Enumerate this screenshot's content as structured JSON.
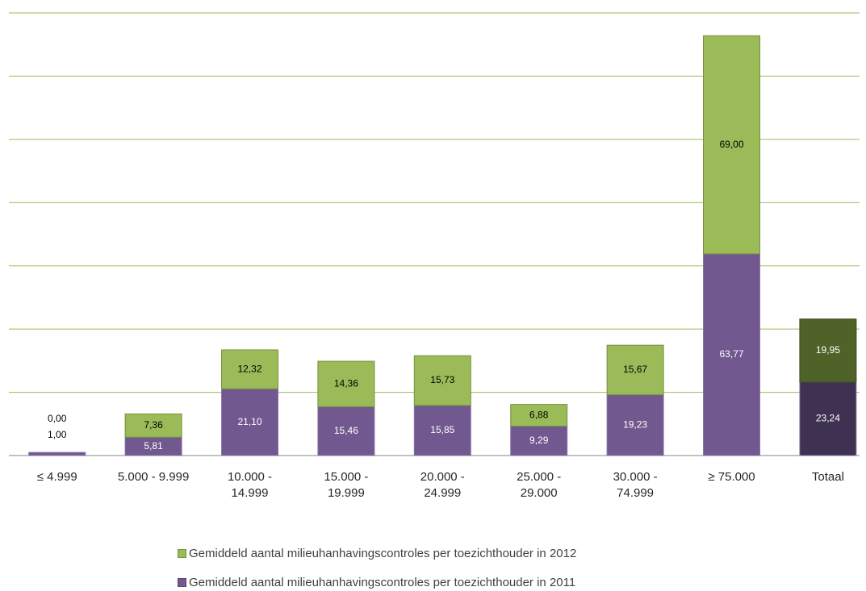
{
  "chart_data": {
    "type": "stacked_bar",
    "categories": [
      "≤ 4.999",
      "5.000 - 9.999",
      "10.000 - 14.999",
      "15.000 - 19.999",
      "20.000 - 24.999",
      "25.000 - 29.000",
      "30.000 - 74.999",
      "≥ 75.000",
      "Totaal"
    ],
    "series": [
      {
        "name": "Gemiddeld aantal milieuhanhavingscontroles per toezichthouder in 2011",
        "color": "#71588f",
        "colors": [
          "#71588f",
          "#71588f",
          "#71588f",
          "#71588f",
          "#71588f",
          "#71588f",
          "#71588f",
          "#71588f",
          "#3f3151"
        ],
        "values": [
          1.0,
          5.81,
          21.1,
          15.46,
          15.85,
          9.29,
          19.23,
          63.77,
          23.24
        ],
        "value_labels": [
          "1,00",
          "5,81",
          "21,10",
          "15,46",
          "15,85",
          "9,29",
          "19,23",
          "63,77",
          "23,24"
        ]
      },
      {
        "name": "Gemiddeld aantal milieuhanhavingscontroles per toezichthouder in 2012",
        "color": "#9bbb59",
        "colors": [
          "#9bbb59",
          "#9bbb59",
          "#9bbb59",
          "#9bbb59",
          "#9bbb59",
          "#9bbb59",
          "#9bbb59",
          "#9bbb59",
          "#4f6228"
        ],
        "values": [
          0.0,
          7.36,
          12.32,
          14.36,
          15.73,
          6.88,
          15.67,
          69.0,
          19.95
        ],
        "value_labels": [
          "0,00",
          "7,36",
          "12,32",
          "14,36",
          "15,73",
          "6,88",
          "15,67",
          "69,00",
          "19,95"
        ]
      }
    ],
    "ylim": [
      0,
      140
    ],
    "yticks": [
      0,
      20,
      40,
      60,
      80,
      100,
      120,
      140
    ],
    "grid": true,
    "legend": "bottom"
  }
}
